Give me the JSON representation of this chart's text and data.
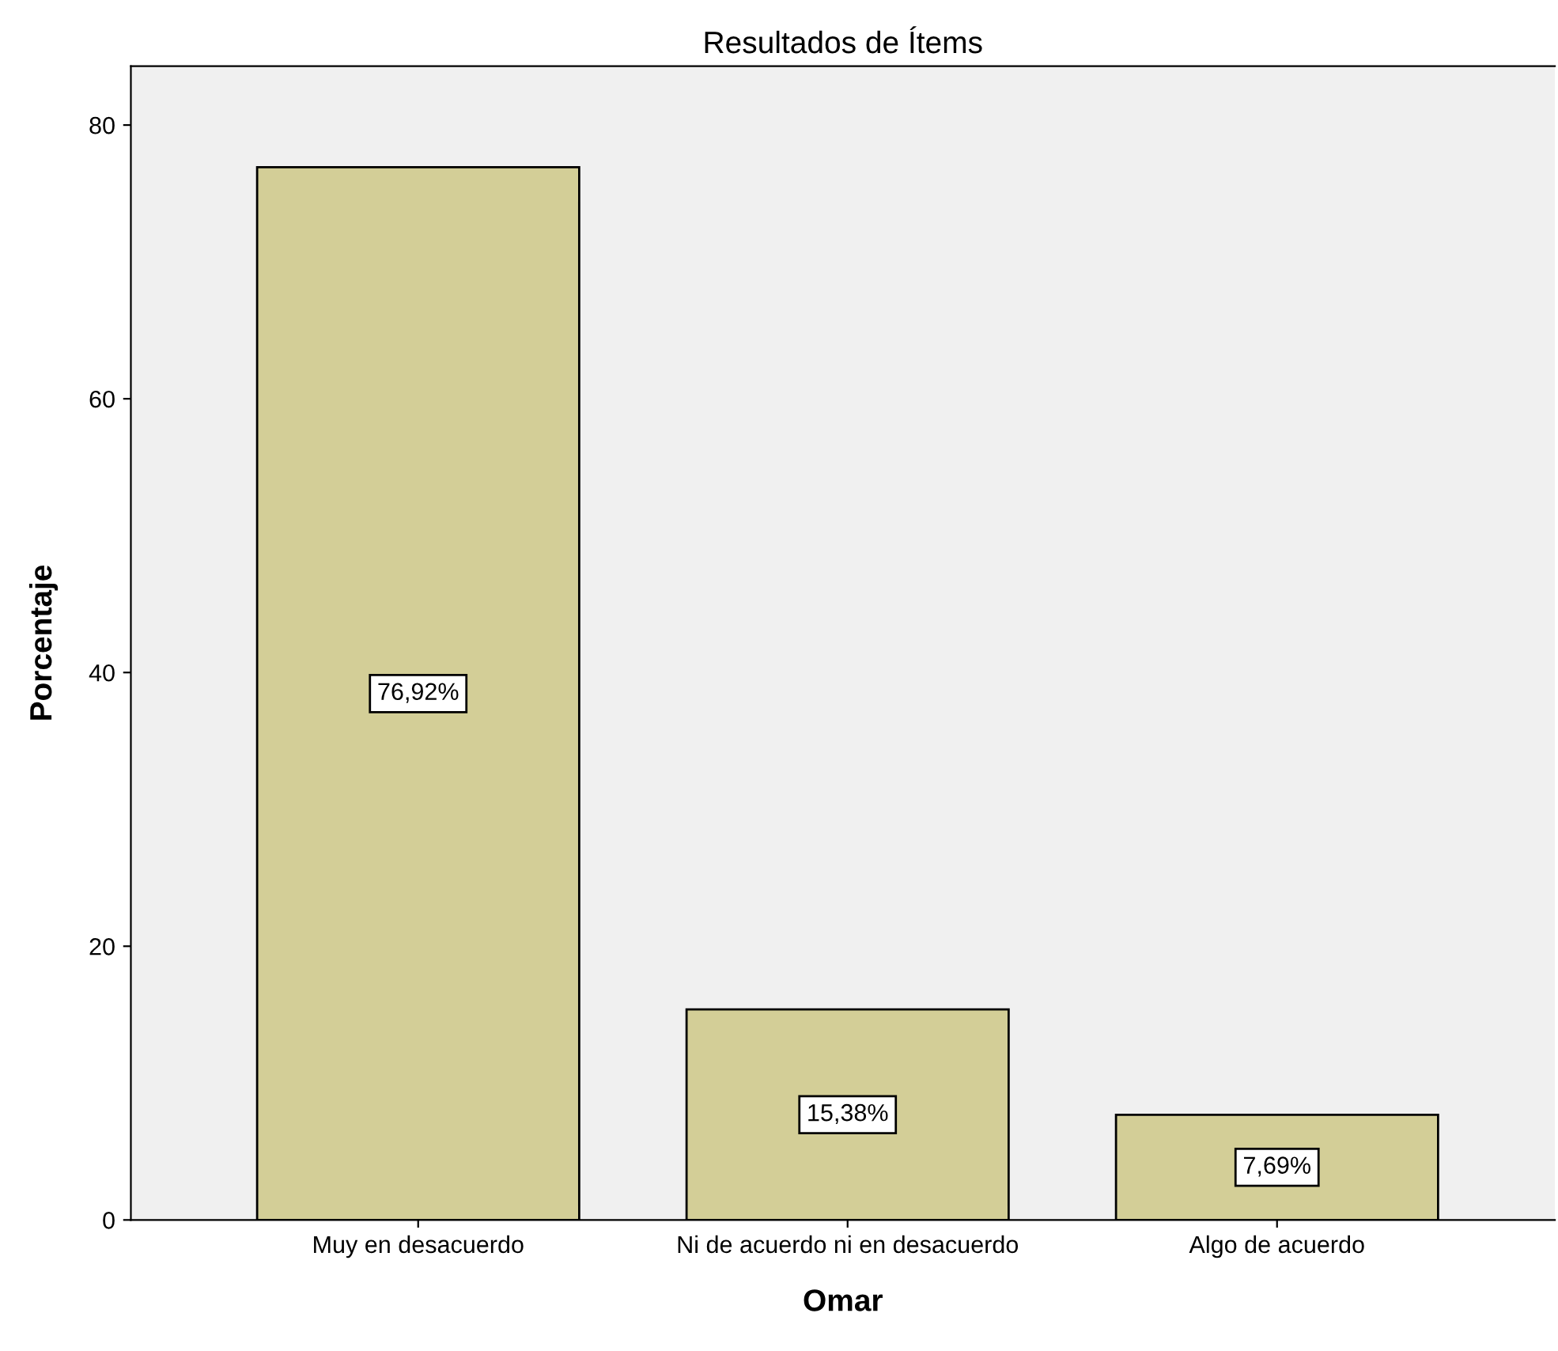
{
  "chart_data": {
    "type": "bar",
    "title": "Resultados de Ítems",
    "xlabel": "Omar",
    "ylabel": "Porcentaje",
    "categories": [
      "Muy en desacuerdo",
      "Ni de acuerdo ni en desacuerdo",
      "Algo de acuerdo"
    ],
    "values": [
      76.92,
      15.38,
      7.69
    ],
    "value_labels": [
      "76,92%",
      "15,38%",
      "7,69%"
    ],
    "color": "#d3ce97",
    "ylim": [
      0,
      84.3
    ],
    "yticks": [
      0,
      20,
      40,
      60,
      80
    ],
    "grid": false
  }
}
